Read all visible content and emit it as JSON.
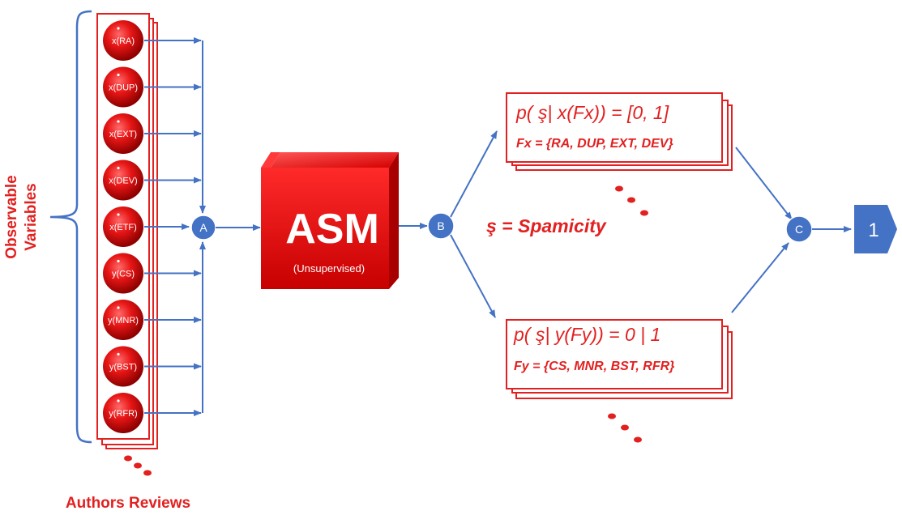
{
  "side_label": [
    "Observable",
    "Variables"
  ],
  "bottom_label": "Authors Reviews",
  "variables": [
    "x(RA)",
    "x(DUP)",
    "x(EXT)",
    "x(DEV)",
    "x(ETF)",
    "y(CS)",
    "y(MNR)",
    "y(BST)",
    "y(RFR)"
  ],
  "nodes": {
    "a": "A",
    "b": "B",
    "c": "C"
  },
  "asm": {
    "title": "ASM",
    "subtitle": "(Unsupervised)"
  },
  "top_box": {
    "formula": "p( ş| x(Fx)) = [0, 1]",
    "set": "Fx = {RA, DUP, EXT, DEV}"
  },
  "bottom_box": {
    "formula": "p( ş| y(Fy)) = 0 | 1",
    "set": "Fy = {CS, MNR, BST, RFR}"
  },
  "spamicity": "ş = Spamicity",
  "output": "1",
  "colors": {
    "red": "#e32020",
    "blue": "#4472c4",
    "node": "#4472c4",
    "output": "#4472c4"
  }
}
